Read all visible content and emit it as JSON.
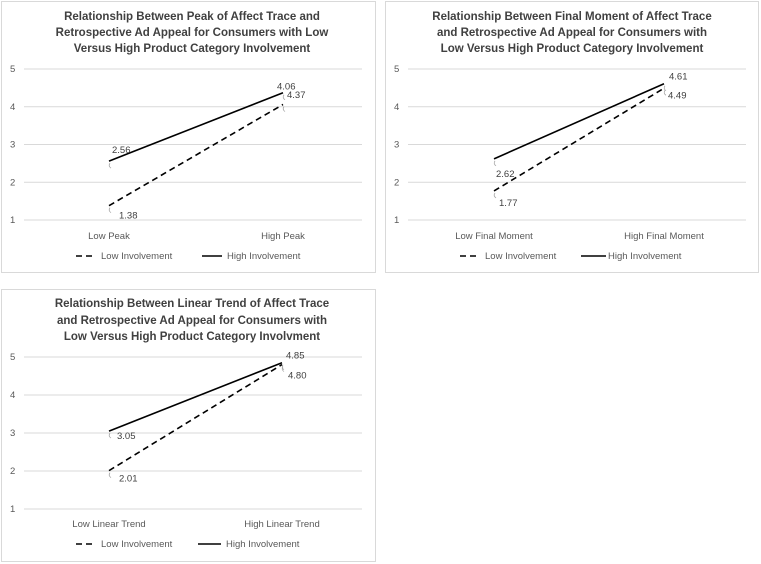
{
  "colors": {
    "line": "#000000",
    "grid": "#d9d9d9",
    "text": "#404040",
    "border": "#d9d9d9"
  },
  "chart_data": [
    {
      "type": "line",
      "title": [
        "Relationship Between Peak of Affect Trace and",
        "Retrospective Ad Appeal for Consumers with Low",
        "Versus High Product Category Involvement"
      ],
      "categories": [
        "Low Peak",
        "High Peak"
      ],
      "yticks": [
        "1",
        "2",
        "3",
        "4",
        "5"
      ],
      "ylim": [
        1,
        5
      ],
      "series": [
        {
          "name": "Low Involvement",
          "style": "dashed",
          "values": [
            1.38,
            4.06
          ],
          "labels": [
            "1.38",
            "4.06"
          ]
        },
        {
          "name": "High Involvement",
          "style": "solid",
          "values": [
            2.56,
            4.37
          ],
          "labels": [
            "2.56",
            "4.37"
          ]
        }
      ],
      "legend": "bottom"
    },
    {
      "type": "line",
      "title": [
        "Relationship Between Final Moment of Affect Trace",
        "and Retrospective Ad Appeal for Consumers with",
        "Low Versus High Product Category Involvement"
      ],
      "categories": [
        "Low Final Moment",
        "High Final Moment"
      ],
      "yticks": [
        "1",
        "2",
        "3",
        "4",
        "5"
      ],
      "ylim": [
        1,
        5
      ],
      "series": [
        {
          "name": "Low Involvement",
          "style": "dashed",
          "values": [
            1.77,
            4.49
          ],
          "labels": [
            "1.77",
            "4.49"
          ]
        },
        {
          "name": "High Involvement",
          "style": "solid",
          "values": [
            2.62,
            4.61
          ],
          "labels": [
            "2.62",
            "4.61"
          ]
        }
      ],
      "legend": "bottom"
    },
    {
      "type": "line",
      "title": [
        "Relationship Between Linear Trend of Affect Trace",
        "and Retrospective Ad Appeal for Consumers with",
        "Low Versus High Product Category Involvment"
      ],
      "categories": [
        "Low Linear Trend",
        "High Linear Trend"
      ],
      "yticks": [
        "1",
        "2",
        "3",
        "4",
        "5"
      ],
      "ylim": [
        1,
        5
      ],
      "series": [
        {
          "name": "Low Involvement",
          "style": "dashed",
          "values": [
            2.01,
            4.8
          ],
          "labels": [
            "2.01",
            "4.80"
          ]
        },
        {
          "name": "High Involvement",
          "style": "solid",
          "values": [
            3.05,
            4.85
          ],
          "labels": [
            "3.05",
            "4.85"
          ]
        }
      ],
      "legend": "bottom"
    }
  ]
}
